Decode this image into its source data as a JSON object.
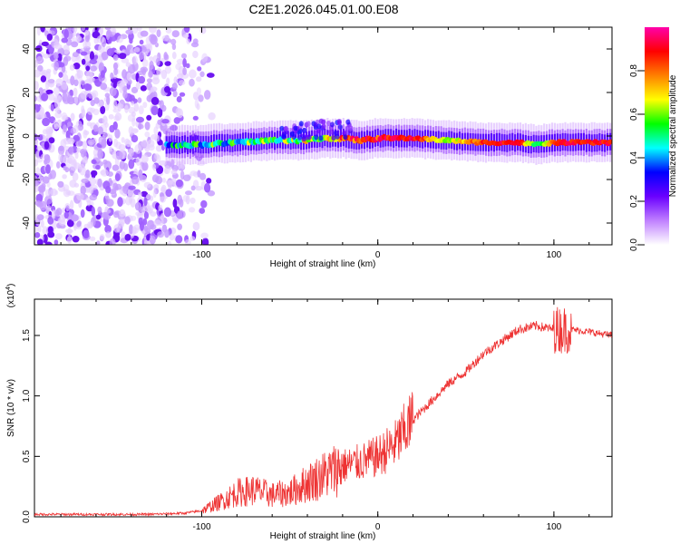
{
  "title": "C2E1.2026.045.01.00.E08",
  "chart_data": [
    {
      "type": "heatmap",
      "xlabel": "Height of straight line (km)",
      "ylabel": "Frequency (Hz)",
      "xlim": [
        -195,
        133
      ],
      "ylim": [
        -50,
        50
      ],
      "xticks": [
        -100,
        0,
        100
      ],
      "xtick_labels": [
        "-100",
        "0",
        "100"
      ],
      "yticks": [
        -40,
        -20,
        0,
        20,
        40
      ],
      "ytick_labels": [
        "-40",
        "-20",
        "0",
        "20",
        "40"
      ],
      "colorbar": {
        "label": "Normalized spectral amplitude",
        "range": [
          0,
          1
        ],
        "ticks": [
          0.0,
          0.2,
          0.4,
          0.6,
          0.8
        ],
        "tick_labels": [
          "0.0",
          "0.2",
          "0.4",
          "0.6",
          "0.8"
        ],
        "colormap": [
          "#ffffff",
          "#c080ff",
          "#6a00ff",
          "#0000ff",
          "#00ffff",
          "#00ff00",
          "#ffff00",
          "#ff8000",
          "#ff0000",
          "#ff00aa"
        ]
      },
      "ridge": {
        "x": [
          -120,
          -100,
          -80,
          -60,
          -40,
          -30,
          -20,
          -10,
          0,
          20,
          40,
          60,
          80,
          90,
          100,
          110,
          133
        ],
        "y": [
          -4,
          -4,
          -3,
          -2,
          -2,
          -1,
          -1,
          -2,
          -1,
          -1,
          -2,
          -3,
          -3,
          -4,
          -3,
          -3,
          -3
        ],
        "amplitude": [
          0.35,
          0.4,
          0.45,
          0.5,
          0.55,
          0.6,
          0.75,
          0.85,
          0.9,
          0.95,
          0.6,
          0.9,
          0.95,
          0.5,
          0.85,
          0.95,
          0.95
        ]
      },
      "noise_region_x": [
        -195,
        -100
      ]
    },
    {
      "type": "line",
      "xlabel": "Height of straight line (km)",
      "ylabel": "SNR (10 * v/v)",
      "ylabel_multiplier": "(x10",
      "ylabel_multiplier_exp": "4",
      "ylabel_multiplier_close": ")",
      "xlim": [
        -195,
        133
      ],
      "ylim": [
        0,
        1.8
      ],
      "xticks": [
        -100,
        0,
        100
      ],
      "xtick_labels": [
        "-100",
        "0",
        "100"
      ],
      "yticks": [
        0,
        0.5,
        1.0,
        1.5
      ],
      "ytick_labels": [
        "0.0",
        "0.5",
        "1.0",
        "1.5"
      ],
      "color": "#ee3333",
      "series": [
        {
          "name": "SNR",
          "x": [
            -195,
            -160,
            -130,
            -110,
            -100,
            -90,
            -80,
            -70,
            -60,
            -50,
            -40,
            -30,
            -20,
            -10,
            0,
            10,
            20,
            30,
            40,
            50,
            60,
            70,
            80,
            90,
            100,
            110,
            120,
            133
          ],
          "y": [
            0.02,
            0.02,
            0.02,
            0.03,
            0.05,
            0.12,
            0.2,
            0.22,
            0.18,
            0.2,
            0.28,
            0.35,
            0.42,
            0.45,
            0.5,
            0.6,
            0.8,
            0.95,
            1.1,
            1.2,
            1.35,
            1.45,
            1.55,
            1.58,
            1.55,
            1.55,
            1.53,
            1.5
          ]
        }
      ]
    }
  ]
}
